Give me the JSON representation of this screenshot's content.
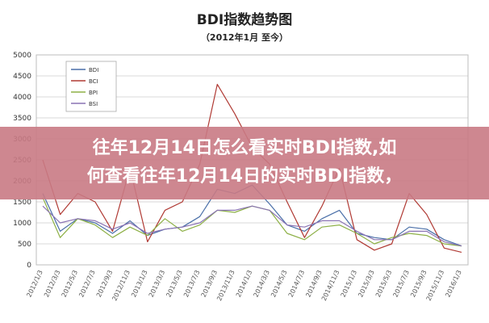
{
  "chart_data": {
    "type": "line",
    "title": "BDI指数趋势图",
    "subtitle": "（2012年1月 至今）",
    "xlabel": "",
    "ylabel": "",
    "ylim": [
      0,
      5000
    ],
    "yticks": [
      0,
      500,
      1000,
      1500,
      2000,
      2500,
      3000,
      3500,
      4000,
      4500,
      5000
    ],
    "grid": true,
    "legend_position": "top-left",
    "x": [
      "2012/1/3",
      "2012/3/3",
      "2012/5/3",
      "2012/7/3",
      "2012/9/3",
      "2012/11/3",
      "2013/1/3",
      "2013/3/3",
      "2013/5/3",
      "2013/7/3",
      "2013/9/3",
      "2013/11/3",
      "2014/1/3",
      "2014/3/3",
      "2014/5/3",
      "2014/7/3",
      "2014/9/3",
      "2014/11/3",
      "2015/1/3",
      "2015/3/3",
      "2015/5/3",
      "2015/7/3",
      "2015/9/3",
      "2015/11/3",
      "2016/1/3"
    ],
    "series": [
      {
        "name": "BDI",
        "color": "#4a6fa8",
        "values": [
          1700,
          800,
          1100,
          1000,
          750,
          1050,
          700,
          850,
          900,
          1150,
          1800,
          1700,
          1900,
          1450,
          950,
          800,
          1100,
          1300,
          750,
          650,
          600,
          900,
          850,
          600,
          450
        ]
      },
      {
        "name": "BCI",
        "color": "#b03a34",
        "values": [
          2500,
          1200,
          1700,
          1500,
          800,
          2300,
          550,
          1300,
          1500,
          2400,
          4300,
          3600,
          2800,
          2400,
          1500,
          650,
          1400,
          2300,
          600,
          350,
          500,
          1700,
          1200,
          400,
          300
        ]
      },
      {
        "name": "BPI",
        "color": "#8db046",
        "values": [
          1600,
          650,
          1100,
          950,
          650,
          900,
          700,
          1100,
          800,
          950,
          1300,
          1250,
          1400,
          1300,
          750,
          600,
          900,
          950,
          750,
          500,
          650,
          750,
          700,
          500,
          450
        ]
      },
      {
        "name": "BSI",
        "color": "#8a73b3",
        "values": [
          1400,
          1000,
          1100,
          1050,
          850,
          1000,
          750,
          850,
          900,
          1000,
          1300,
          1300,
          1400,
          1300,
          950,
          900,
          1050,
          1050,
          800,
          600,
          600,
          800,
          800,
          550,
          450
        ]
      }
    ]
  },
  "overlay": {
    "line1": "往年12月14日怎么看实时BDI指数,如",
    "line2": "何查看往年12月14日的实时BDI指数，"
  }
}
